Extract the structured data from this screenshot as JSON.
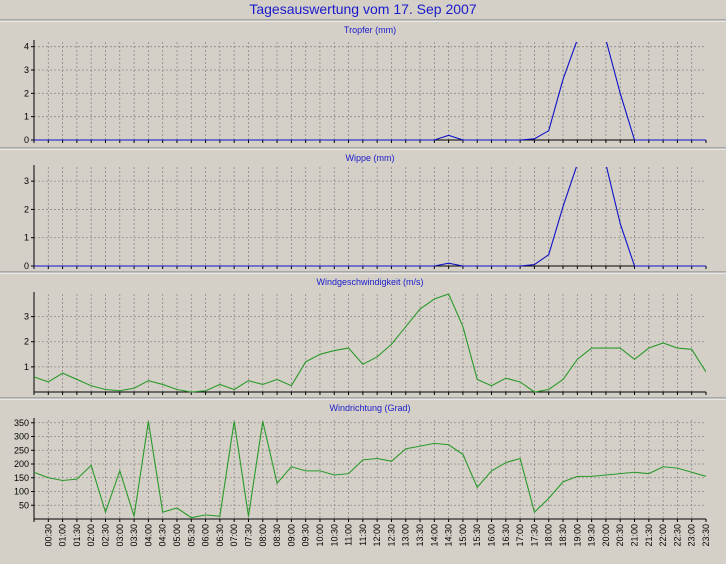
{
  "page_title": "Tagesauswertung vom 17. Sep 2007",
  "chart_data": [
    {
      "type": "line",
      "title": "Tropfer (mm)",
      "ylim": [
        0,
        4.2
      ],
      "yticks": [
        0,
        1,
        2,
        3,
        4
      ],
      "color": "#1010c8",
      "clip_top": true,
      "values": [
        0,
        0,
        0,
        0,
        0,
        0,
        0,
        0,
        0,
        0,
        0,
        0,
        0,
        0,
        0,
        0,
        0,
        0,
        0,
        0,
        0,
        0,
        0,
        0,
        0,
        0,
        0,
        0,
        0,
        0.2,
        0,
        0,
        0,
        0,
        0,
        0.05,
        0.4,
        2.6,
        4.3,
        4.5,
        4.3,
        2.0,
        0,
        0,
        0,
        0,
        0,
        0
      ]
    },
    {
      "type": "line",
      "title": "Wippe (mm)",
      "ylim": [
        0,
        3.5
      ],
      "yticks": [
        0,
        1,
        2,
        3
      ],
      "color": "#1010c8",
      "clip_top": true,
      "values": [
        0,
        0,
        0,
        0,
        0,
        0,
        0,
        0,
        0,
        0,
        0,
        0,
        0,
        0,
        0,
        0,
        0,
        0,
        0,
        0,
        0,
        0,
        0,
        0,
        0,
        0,
        0,
        0,
        0,
        0.1,
        0,
        0,
        0,
        0,
        0,
        0.05,
        0.4,
        2.1,
        3.6,
        3.8,
        3.6,
        1.5,
        0,
        0,
        0,
        0,
        0,
        0
      ]
    },
    {
      "type": "line",
      "title": "Windgeschwindigkeit (m/s)",
      "ylim": [
        0,
        3.9
      ],
      "yticks": [
        1,
        2,
        3
      ],
      "color": "#2a9a2a",
      "clip_top": false,
      "values": [
        0.6,
        0.4,
        0.75,
        0.5,
        0.25,
        0.1,
        0.05,
        0.15,
        0.45,
        0.3,
        0.1,
        0,
        0.05,
        0.3,
        0.1,
        0.45,
        0.3,
        0.5,
        0.25,
        1.2,
        1.5,
        1.65,
        1.75,
        1.1,
        1.4,
        1.9,
        2.6,
        3.3,
        3.7,
        3.9,
        2.6,
        0.5,
        0.25,
        0.55,
        0.4,
        0,
        0.1,
        0.5,
        1.3,
        1.75,
        1.75,
        1.75,
        1.3,
        1.75,
        1.95,
        1.75,
        1.7,
        0.8
      ]
    },
    {
      "type": "line",
      "title": "Windrichtung (Grad)",
      "ylim": [
        0,
        360
      ],
      "yticks": [
        50,
        100,
        150,
        200,
        250,
        300,
        350
      ],
      "color": "#2a9a2a",
      "clip_top": false,
      "values": [
        170,
        150,
        140,
        145,
        195,
        25,
        175,
        10,
        355,
        25,
        40,
        5,
        15,
        10,
        355,
        10,
        355,
        130,
        190,
        175,
        175,
        160,
        165,
        215,
        220,
        210,
        255,
        265,
        275,
        270,
        235,
        115,
        175,
        205,
        220,
        25,
        75,
        135,
        155,
        155,
        160,
        165,
        170,
        165,
        190,
        185,
        170,
        155
      ]
    }
  ],
  "x_tick_labels": [
    "00:30",
    "01:00",
    "01:30",
    "02:00",
    "02:30",
    "03:00",
    "03:30",
    "04:00",
    "04:30",
    "05:00",
    "05:30",
    "06:00",
    "06:30",
    "07:00",
    "07:30",
    "08:00",
    "08:30",
    "09:00",
    "09:30",
    "10:00",
    "10:30",
    "11:00",
    "11:30",
    "12:00",
    "12:30",
    "13:00",
    "13:30",
    "14:00",
    "14:30",
    "15:00",
    "15:30",
    "16:00",
    "16:30",
    "17:00",
    "17:30",
    "18:00",
    "18:30",
    "19:00",
    "19:30",
    "20:00",
    "20:30",
    "21:00",
    "21:30",
    "22:00",
    "22:30",
    "23:00",
    "23:30"
  ]
}
